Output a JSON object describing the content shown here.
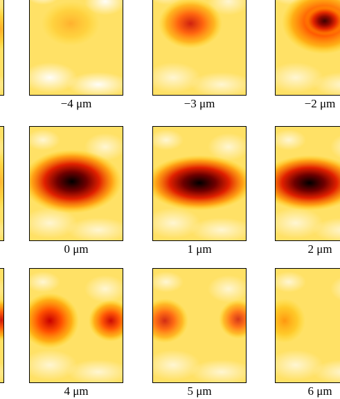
{
  "labels": [
    [
      "−4 μm",
      "−3 μm",
      "−2 μm"
    ],
    [
      "0 μm",
      "1 μm",
      "2 μm"
    ],
    [
      "4 μm",
      "5 μm",
      "6 μm"
    ]
  ]
}
